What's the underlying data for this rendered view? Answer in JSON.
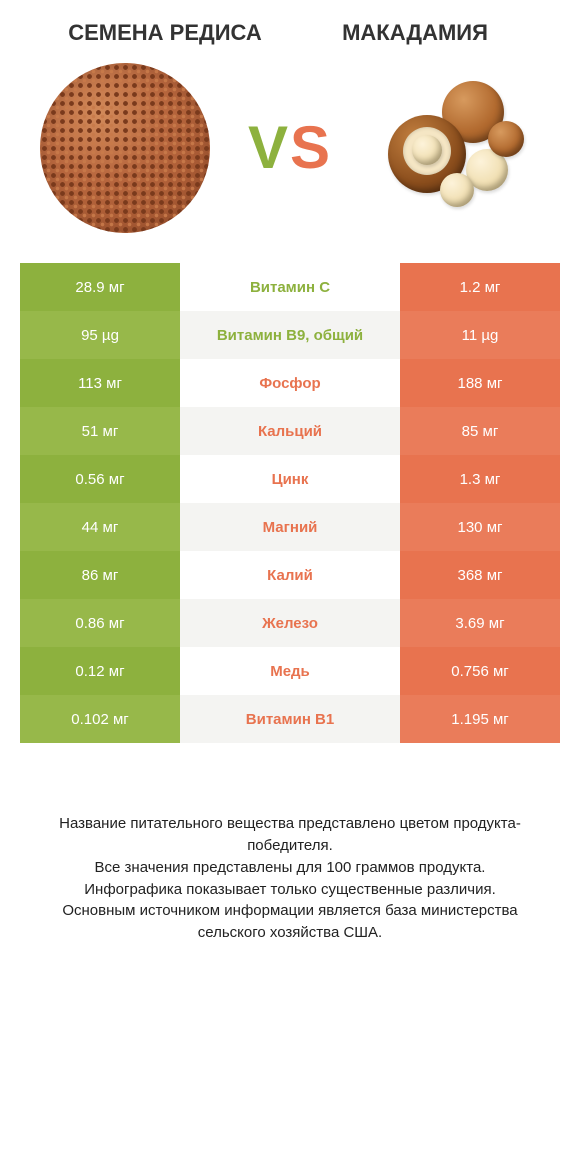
{
  "left_food": {
    "title": "Семена редиса"
  },
  "right_food": {
    "title": "Макадамия"
  },
  "vs": {
    "v": "V",
    "s": "S"
  },
  "colors": {
    "green": "#8db13e",
    "orange": "#e8734f"
  },
  "rows": [
    {
      "nutrient": "Витамин C",
      "left": "28.9 мг",
      "right": "1.2 мг",
      "winner": "left"
    },
    {
      "nutrient": "Витамин B9, общий",
      "left": "95 µg",
      "right": "11 µg",
      "winner": "left"
    },
    {
      "nutrient": "Фосфор",
      "left": "113 мг",
      "right": "188 мг",
      "winner": "right"
    },
    {
      "nutrient": "Кальций",
      "left": "51 мг",
      "right": "85 мг",
      "winner": "right"
    },
    {
      "nutrient": "Цинк",
      "left": "0.56 мг",
      "right": "1.3 мг",
      "winner": "right"
    },
    {
      "nutrient": "Магний",
      "left": "44 мг",
      "right": "130 мг",
      "winner": "right"
    },
    {
      "nutrient": "Калий",
      "left": "86 мг",
      "right": "368 мг",
      "winner": "right"
    },
    {
      "nutrient": "Железо",
      "left": "0.86 мг",
      "right": "3.69 мг",
      "winner": "right"
    },
    {
      "nutrient": "Медь",
      "left": "0.12 мг",
      "right": "0.756 мг",
      "winner": "right"
    },
    {
      "nutrient": "Витамин B1",
      "left": "0.102 мг",
      "right": "1.195 мг",
      "winner": "right"
    }
  ],
  "footer_lines": [
    "Название питательного вещества представлено цветом продукта-победителя.",
    "Все значения представлены для 100 граммов продукта.",
    "Инфографика показывает только существенные различия.",
    "Основным источником информации является база министерства сельского хозяйства США."
  ]
}
